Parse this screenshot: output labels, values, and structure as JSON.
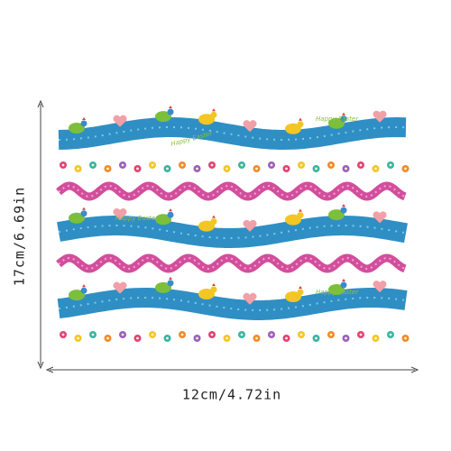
{
  "dimensions": {
    "height_label": "17cm/6.69in",
    "width_label": "12cm/4.72in"
  },
  "sticker_text": "Happy Easter"
}
